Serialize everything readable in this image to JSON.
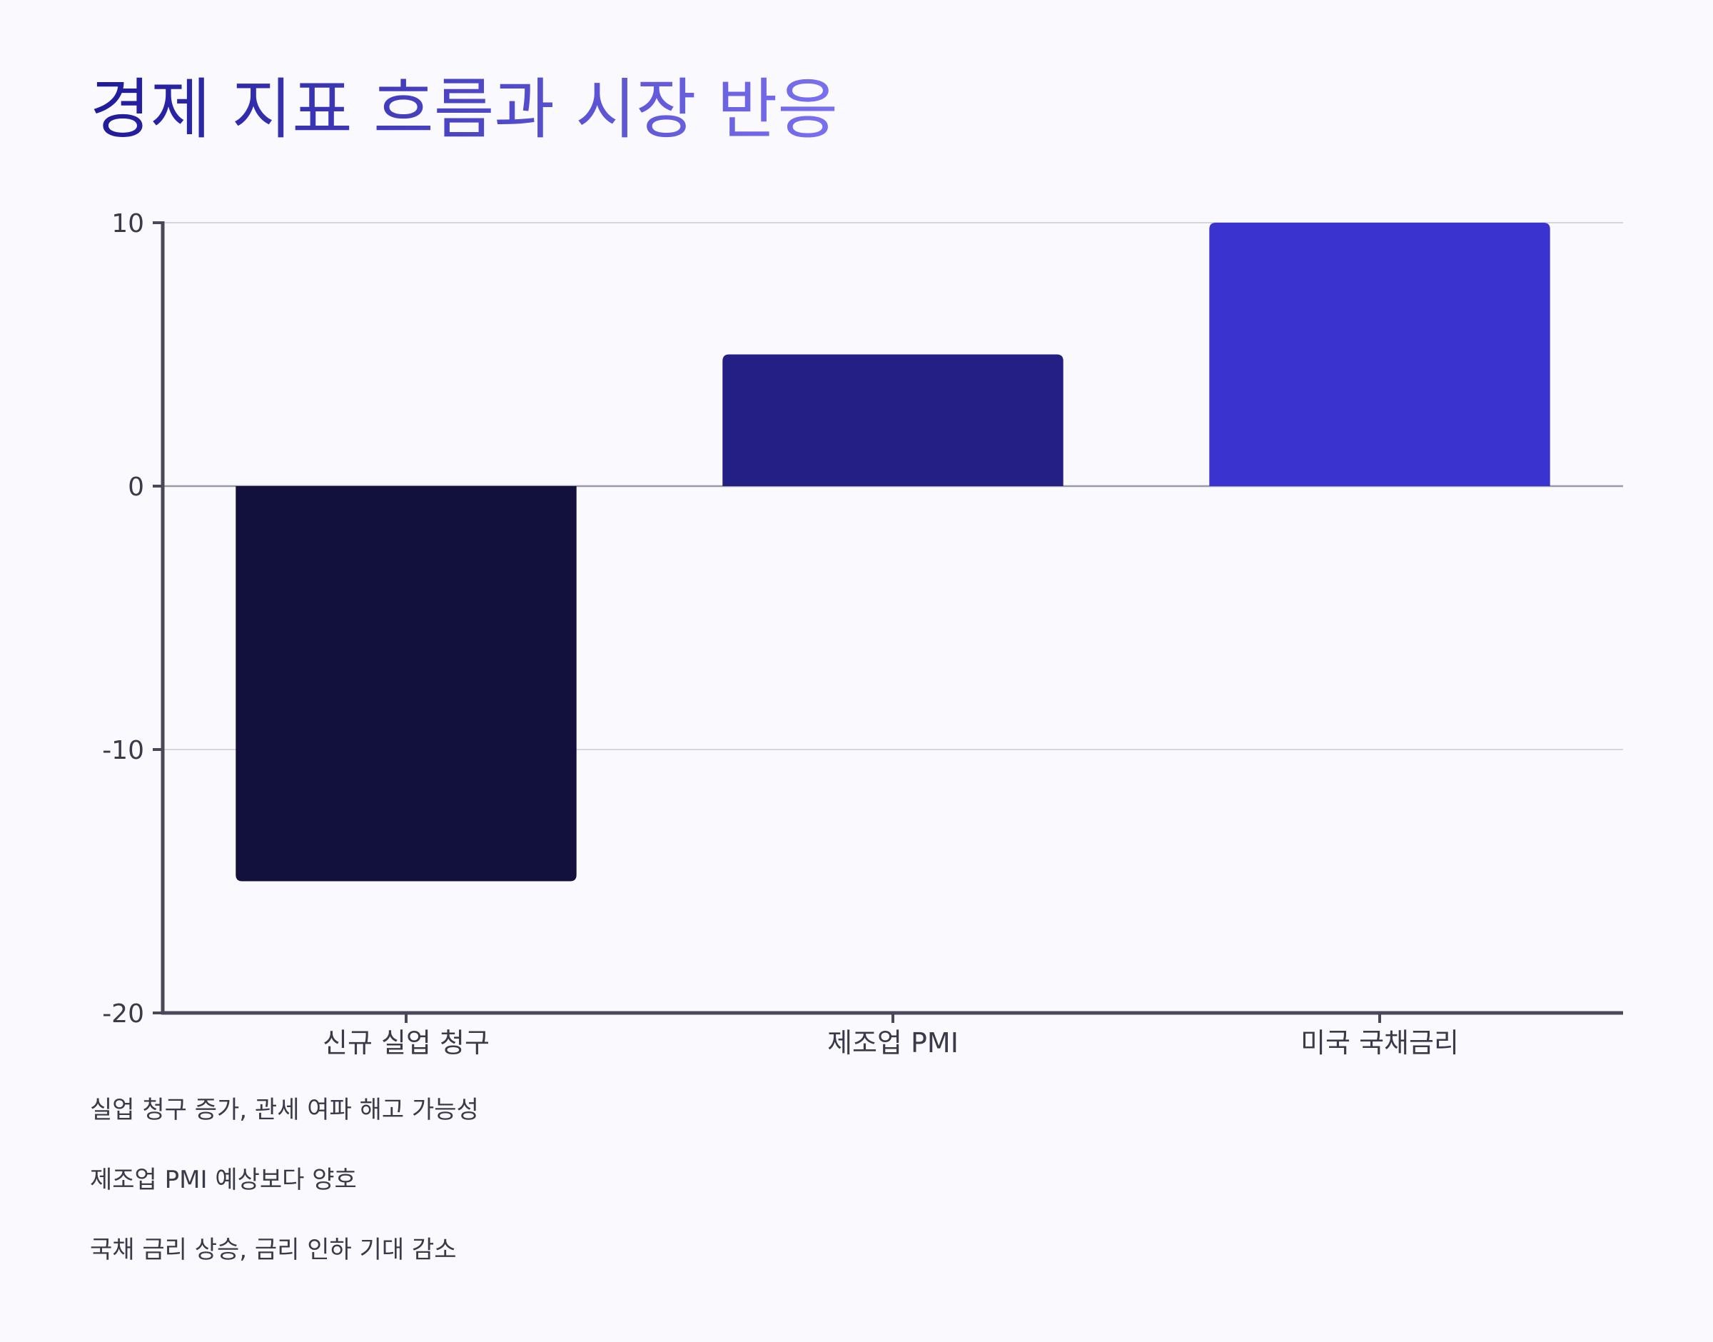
{
  "colors": {
    "background": "#f9f9fe",
    "title_gradient_start": "#1e1a99",
    "title_gradient_end": "#7a70f0",
    "axis": "#4a4858",
    "grid": "#d6d6e0",
    "zero_line": "#9a9aa6"
  },
  "chart_data": {
    "type": "bar",
    "title": "경제 지표 흐름과 시장 반응",
    "categories": [
      "신규 실업 청구",
      "제조업 PMI",
      "미국 국채금리"
    ],
    "values": [
      -15,
      5,
      10
    ],
    "bar_colors": [
      "#12103c",
      "#231f84",
      "#3a33cf"
    ],
    "ylim": [
      -20,
      10
    ],
    "yticks": [
      10,
      0,
      -10,
      -20
    ],
    "ytick_labels": [
      "10",
      "0",
      "-10",
      "-20"
    ],
    "xlabel": "",
    "ylabel": "",
    "grid": true,
    "legend": false,
    "annotations": [
      "실업 청구 증가, 관세 여파 해고 가능성",
      "제조업 PMI 예상보다 양호",
      "국채 금리 상승, 금리 인하 기대 감소"
    ]
  }
}
